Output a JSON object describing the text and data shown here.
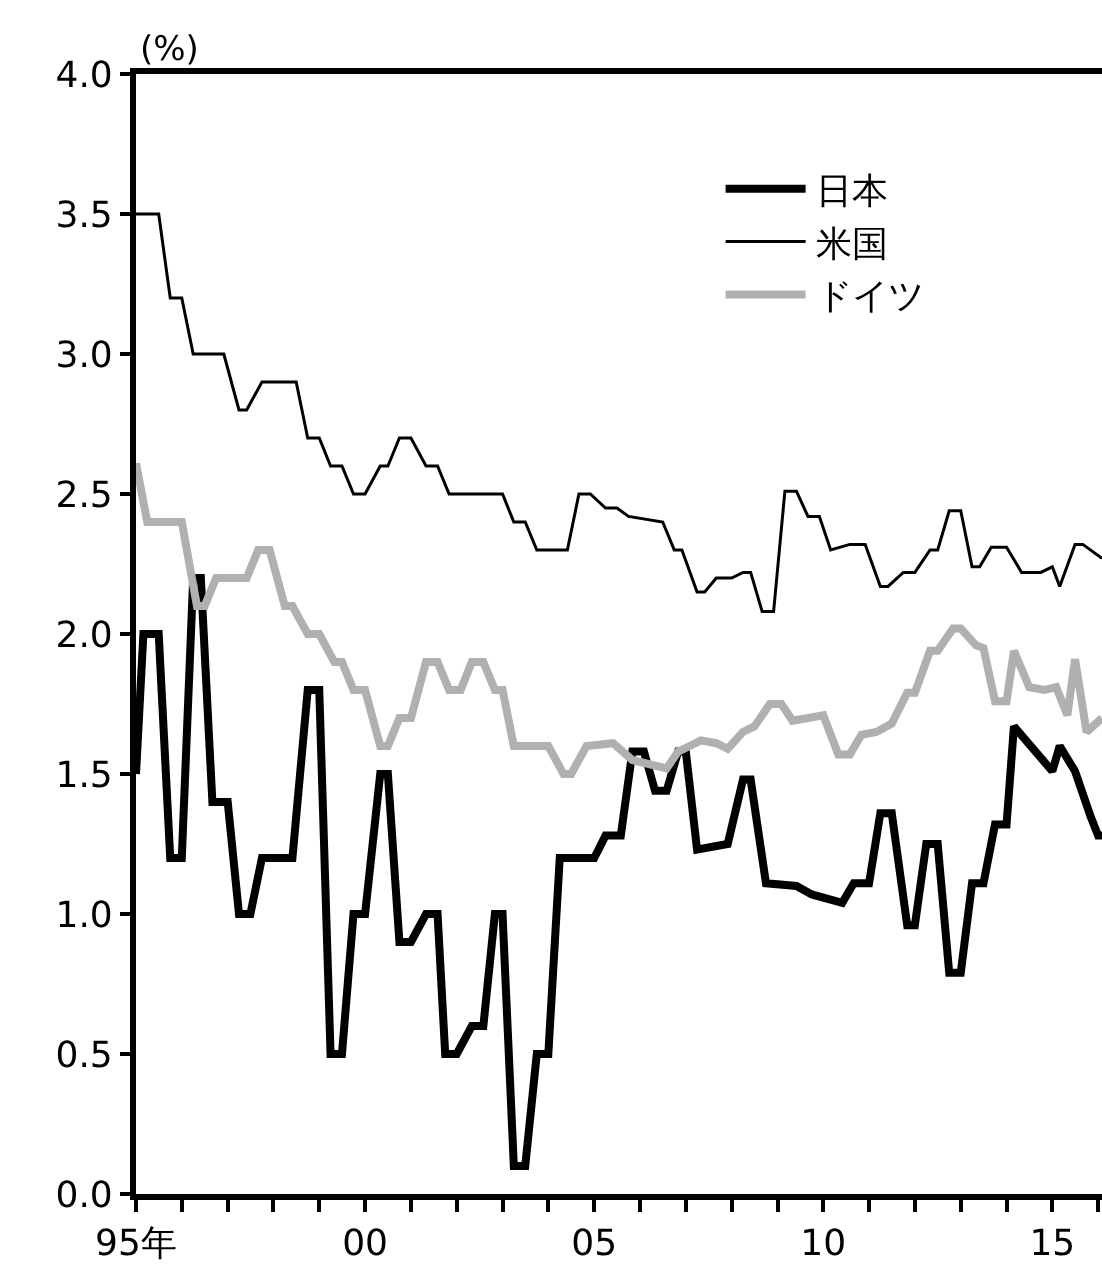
{
  "chart_data": {
    "type": "line",
    "ylabel": "(%)",
    "legend": "top right",
    "marker": "none",
    "line_style": "solid",
    "xlim": [
      "1995-01",
      "2016-02"
    ],
    "xticks": [
      {
        "value": "1995",
        "label": "95年"
      },
      {
        "value": "1996",
        "label": null
      },
      {
        "value": "1997",
        "label": null
      },
      {
        "value": "1998",
        "label": null
      },
      {
        "value": "1999",
        "label": null
      },
      {
        "value": "2000",
        "label": "00"
      },
      {
        "value": "2001",
        "label": null
      },
      {
        "value": "2002",
        "label": null
      },
      {
        "value": "2003",
        "label": null
      },
      {
        "value": "2004",
        "label": null
      },
      {
        "value": "2005",
        "label": "05"
      },
      {
        "value": "2006",
        "label": null
      },
      {
        "value": "2007",
        "label": null
      },
      {
        "value": "2008",
        "label": null
      },
      {
        "value": "2009",
        "label": null
      },
      {
        "value": "2010",
        "label": "10"
      },
      {
        "value": "2011",
        "label": null
      },
      {
        "value": "2012",
        "label": null
      },
      {
        "value": "2013",
        "label": null
      },
      {
        "value": "2014",
        "label": null
      },
      {
        "value": "2015",
        "label": "15"
      },
      {
        "value": "2016",
        "label": null
      }
    ],
    "ylim": [
      0,
      4
    ],
    "yticks": [
      {
        "value": 0,
        "label": "0.0"
      },
      {
        "value": 0.5,
        "label": "0.5"
      },
      {
        "value": 1,
        "label": "1.0"
      },
      {
        "value": 1.5,
        "label": "1.5"
      },
      {
        "value": 2,
        "label": "2.0"
      },
      {
        "value": 2.5,
        "label": "2.5"
      },
      {
        "value": 3,
        "label": "3.0"
      },
      {
        "value": 3.5,
        "label": "3.5"
      },
      {
        "value": 4,
        "label": "4.0"
      }
    ],
    "series": [
      {
        "name": "日本",
        "color": "#000000",
        "x": [
          "1995-01",
          "1995-03",
          "1995-07",
          "1995-10",
          "1996-01",
          "1996-04",
          "1996-06",
          "1996-09",
          "1997-01",
          "1997-04",
          "1997-07",
          "1997-10",
          "1998-06",
          "1998-10",
          "1999-01",
          "1999-04",
          "1999-07",
          "1999-10",
          "2000-01",
          "2000-05",
          "2000-07",
          "2000-10",
          "2001-01",
          "2001-05",
          "2001-08",
          "2001-10",
          "2002-01",
          "2002-05",
          "2002-08",
          "2002-11",
          "2003-01",
          "2003-04",
          "2003-07",
          "2003-10",
          "2004-01",
          "2004-04",
          "2005-01",
          "2005-04",
          "2005-08",
          "2005-11",
          "2006-02",
          "2006-05",
          "2006-08",
          "2006-11",
          "2007-01",
          "2007-04",
          "2007-08",
          "2007-12",
          "2008-04",
          "2008-06",
          "2008-10",
          "2009-06",
          "2009-10",
          "2010-06",
          "2010-09",
          "2011-01",
          "2011-04",
          "2011-07",
          "2011-11",
          "2012-01",
          "2012-04",
          "2012-07",
          "2012-10",
          "2013-01",
          "2013-04",
          "2013-07",
          "2013-10",
          "2014-01",
          "2014-03",
          "2015-01",
          "2015-03",
          "2015-07",
          "2015-11",
          "2016-01",
          "2016-02"
        ],
        "values": [
          1.5,
          2.0,
          2.0,
          1.2,
          1.2,
          2.2,
          2.2,
          1.4,
          1.4,
          1.0,
          1.0,
          1.2,
          1.2,
          1.8,
          1.8,
          0.5,
          0.5,
          1.0,
          1.0,
          1.5,
          1.5,
          0.9,
          0.9,
          1.0,
          1.0,
          0.5,
          0.5,
          0.6,
          0.6,
          1.0,
          1.0,
          0.1,
          0.1,
          0.5,
          0.5,
          1.2,
          1.2,
          1.28,
          1.28,
          1.58,
          1.58,
          1.44,
          1.44,
          1.58,
          1.58,
          1.23,
          1.24,
          1.25,
          1.48,
          1.48,
          1.11,
          1.1,
          1.07,
          1.04,
          1.11,
          1.11,
          1.36,
          1.36,
          0.96,
          0.96,
          1.25,
          1.25,
          0.79,
          0.79,
          1.11,
          1.11,
          1.32,
          1.32,
          1.67,
          1.51,
          1.6,
          1.51,
          1.35,
          1.28,
          1.28
        ]
      },
      {
        "name": "米国",
        "color": "#000000",
        "x": [
          "1995-01",
          "1995-07",
          "1995-10",
          "1996-01",
          "1996-04",
          "1996-12",
          "1997-04",
          "1997-06",
          "1997-10",
          "1998-07",
          "1998-10",
          "1999-01",
          "1999-04",
          "1999-07",
          "1999-10",
          "2000-01",
          "2000-05",
          "2000-07",
          "2000-10",
          "2001-01",
          "2001-05",
          "2001-08",
          "2001-11",
          "2003-01",
          "2003-04",
          "2003-07",
          "2003-10",
          "2004-06",
          "2004-09",
          "2004-12",
          "2005-04",
          "2005-07",
          "2005-10",
          "2006-07",
          "2006-10",
          "2006-12",
          "2007-04",
          "2007-06",
          "2007-09",
          "2008-01",
          "2008-04",
          "2008-06",
          "2008-09",
          "2008-12",
          "2009-03",
          "2009-06",
          "2009-09",
          "2009-12",
          "2010-03",
          "2010-08",
          "2010-12",
          "2011-04",
          "2011-06",
          "2011-10",
          "2012-01",
          "2012-05",
          "2012-07",
          "2012-10",
          "2013-01",
          "2013-04",
          "2013-06",
          "2013-09",
          "2014-01",
          "2014-05",
          "2014-10",
          "2015-01",
          "2015-03",
          "2015-07",
          "2015-09",
          "2016-02"
        ],
        "values": [
          3.5,
          3.5,
          3.2,
          3.2,
          3.0,
          3.0,
          2.8,
          2.8,
          2.9,
          2.9,
          2.7,
          2.7,
          2.6,
          2.6,
          2.5,
          2.5,
          2.6,
          2.6,
          2.7,
          2.7,
          2.6,
          2.6,
          2.5,
          2.5,
          2.4,
          2.4,
          2.3,
          2.3,
          2.5,
          2.5,
          2.45,
          2.45,
          2.42,
          2.4,
          2.3,
          2.3,
          2.15,
          2.15,
          2.2,
          2.2,
          2.22,
          2.22,
          2.08,
          2.08,
          2.51,
          2.51,
          2.42,
          2.42,
          2.3,
          2.32,
          2.32,
          2.17,
          2.17,
          2.22,
          2.22,
          2.3,
          2.3,
          2.44,
          2.44,
          2.24,
          2.24,
          2.31,
          2.31,
          2.22,
          2.22,
          2.24,
          2.17,
          2.32,
          2.32,
          2.27
        ]
      },
      {
        "name": "ドイツ",
        "color": "#b0b0b0",
        "x": [
          "1995-01",
          "1995-04",
          "1996-01",
          "1996-05",
          "1996-07",
          "1996-10",
          "1997-06",
          "1997-09",
          "1997-12",
          "1998-04",
          "1998-06",
          "1998-10",
          "1999-01",
          "1999-05",
          "1999-07",
          "1999-10",
          "2000-01",
          "2000-05",
          "2000-07",
          "2000-10",
          "2001-01",
          "2001-05",
          "2001-08",
          "2001-11",
          "2002-02",
          "2002-05",
          "2002-08",
          "2002-11",
          "2003-01",
          "2003-04",
          "2004-01",
          "2004-05",
          "2004-07",
          "2004-11",
          "2005-06",
          "2005-11",
          "2006-05",
          "2006-08",
          "2006-11",
          "2007-02",
          "2007-05",
          "2007-09",
          "2007-12",
          "2008-04",
          "2008-07",
          "2008-11",
          "2009-02",
          "2009-05",
          "2010-01",
          "2010-05",
          "2010-08",
          "2010-11",
          "2011-03",
          "2011-07",
          "2011-11",
          "2012-01",
          "2012-05",
          "2012-07",
          "2012-11",
          "2013-01",
          "2013-05",
          "2013-07",
          "2013-10",
          "2014-01",
          "2014-03",
          "2014-07",
          "2014-11",
          "2015-02",
          "2015-05",
          "2015-07",
          "2015-10",
          "2016-02"
        ],
        "values": [
          2.61,
          2.4,
          2.4,
          2.1,
          2.1,
          2.2,
          2.2,
          2.3,
          2.3,
          2.1,
          2.1,
          2.0,
          2.0,
          1.9,
          1.9,
          1.8,
          1.8,
          1.6,
          1.6,
          1.7,
          1.7,
          1.9,
          1.9,
          1.8,
          1.8,
          1.9,
          1.9,
          1.8,
          1.8,
          1.6,
          1.6,
          1.5,
          1.5,
          1.6,
          1.61,
          1.55,
          1.53,
          1.52,
          1.58,
          1.6,
          1.62,
          1.61,
          1.59,
          1.65,
          1.67,
          1.75,
          1.75,
          1.69,
          1.71,
          1.57,
          1.57,
          1.64,
          1.65,
          1.68,
          1.79,
          1.79,
          1.94,
          1.94,
          2.02,
          2.02,
          1.96,
          1.95,
          1.76,
          1.76,
          1.94,
          1.81,
          1.8,
          1.81,
          1.71,
          1.91,
          1.65,
          1.7
        ]
      }
    ]
  }
}
